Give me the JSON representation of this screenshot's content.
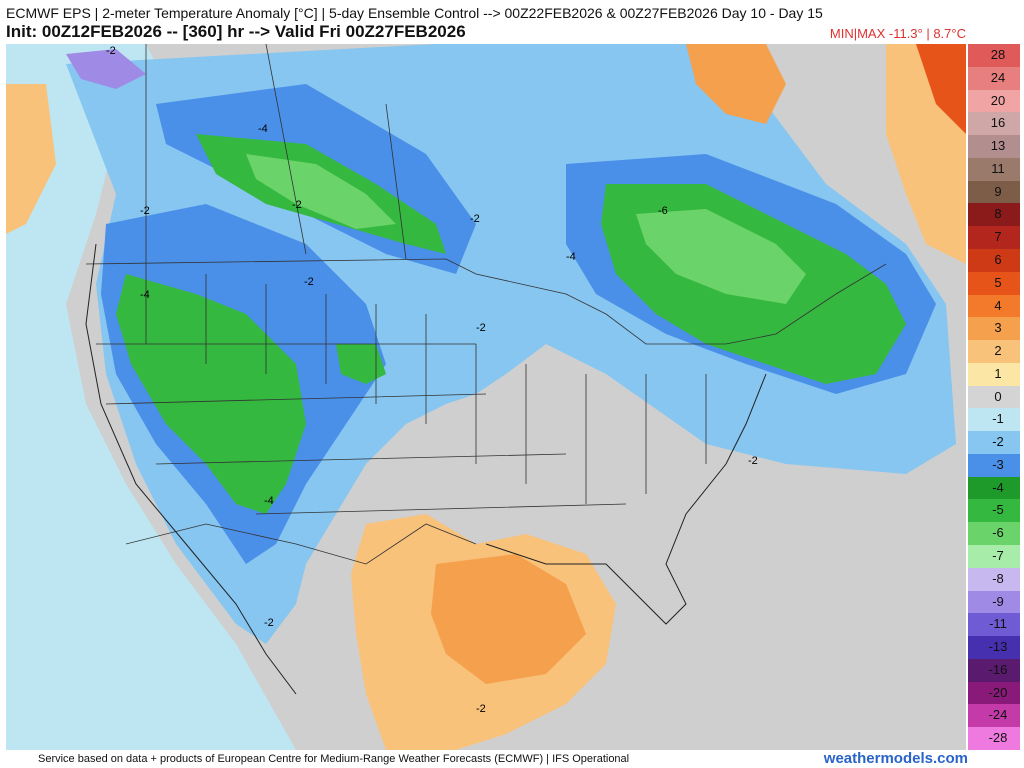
{
  "header": {
    "title": "ECMWF EPS | 2-meter Temperature Anomaly [°C] | 5-day Ensemble Control --> 00Z22FEB2026 & 00Z27FEB2026  Day 10 - Day 15",
    "subtitle": "Init: 00Z12FEB2026 -- [360] hr --> Valid Fri 00Z27FEB2026",
    "minmax": "MIN|MAX -11.3° | 8.7°C"
  },
  "legend": [
    {
      "label": "28",
      "color": "#e05a5a"
    },
    {
      "label": "24",
      "color": "#e87f7f"
    },
    {
      "label": "20",
      "color": "#f0a4a4"
    },
    {
      "label": "16",
      "color": "#cfa7a7"
    },
    {
      "label": "13",
      "color": "#b38e8e"
    },
    {
      "label": "11",
      "color": "#9a7a6a"
    },
    {
      "label": "9",
      "color": "#7d5c48"
    },
    {
      "label": "8",
      "color": "#8b1a1a"
    },
    {
      "label": "7",
      "color": "#b3261e"
    },
    {
      "label": "6",
      "color": "#cf3a16"
    },
    {
      "label": "5",
      "color": "#e6541a"
    },
    {
      "label": "4",
      "color": "#f27a2a"
    },
    {
      "label": "3",
      "color": "#f5a04c"
    },
    {
      "label": "2",
      "color": "#f8c27a"
    },
    {
      "label": "1",
      "color": "#fbe6a6"
    },
    {
      "label": "0",
      "color": "#d4d4d4"
    },
    {
      "label": "-1",
      "color": "#bde6f2"
    },
    {
      "label": "-2",
      "color": "#86c6f0"
    },
    {
      "label": "-3",
      "color": "#4a8fe8"
    },
    {
      "label": "-4",
      "color": "#1e9a2a"
    },
    {
      "label": "-5",
      "color": "#35b83f"
    },
    {
      "label": "-6",
      "color": "#6ad46a"
    },
    {
      "label": "-7",
      "color": "#a8ecaa"
    },
    {
      "label": "-8",
      "color": "#c7b8f0"
    },
    {
      "label": "-9",
      "color": "#9f8ae6"
    },
    {
      "label": "-11",
      "color": "#6f5cd4"
    },
    {
      "label": "-13",
      "color": "#4630b0"
    },
    {
      "label": "-16",
      "color": "#5a1a6e"
    },
    {
      "label": "-20",
      "color": "#8a1a7a"
    },
    {
      "label": "-24",
      "color": "#c43aa8"
    },
    {
      "label": "-28",
      "color": "#ee7ae0"
    }
  ],
  "map": {
    "contour_labels": [
      "-4",
      "-2",
      "-2",
      "-2",
      "-2",
      "-4",
      "-2",
      "-6",
      "-4",
      "-2",
      "-4",
      "-2",
      "-2",
      "-2"
    ]
  },
  "footer": {
    "credit": "Service based on data + products of European Centre for Medium-Range Weather Forecasts (ECMWF) | IFS Operational",
    "site": "weathermodels.com"
  }
}
